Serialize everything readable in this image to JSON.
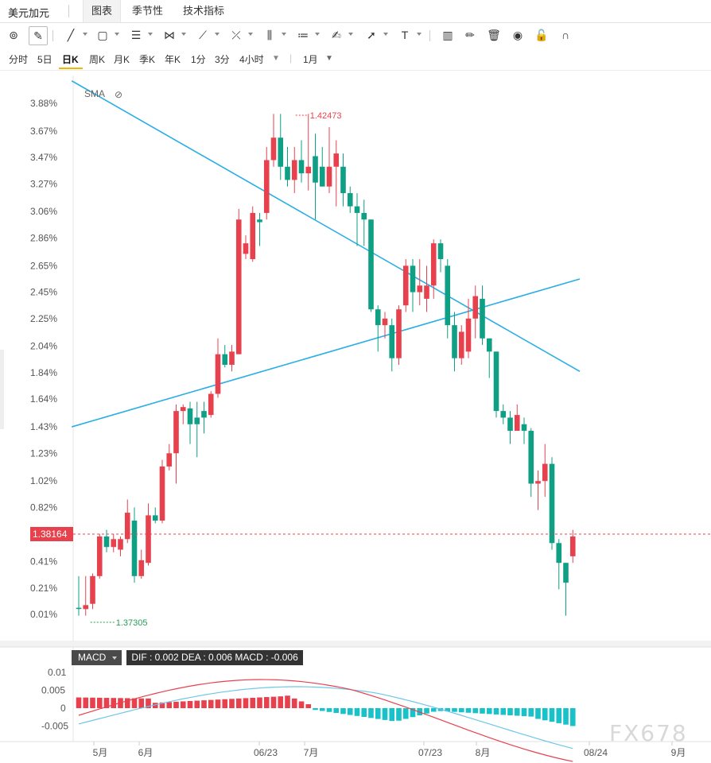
{
  "header": {
    "symbol": "美元加元",
    "tabs": [
      {
        "label": "图表",
        "active": true
      },
      {
        "label": "季节性",
        "active": false
      },
      {
        "label": "技术指标",
        "active": false
      }
    ]
  },
  "toolbar": {
    "tools": [
      {
        "name": "magnet-icon",
        "glyph": "⊚"
      },
      {
        "name": "pencil-lock-icon",
        "glyph": "✎"
      },
      {
        "name": "trend-line-icon",
        "glyph": "╱"
      },
      {
        "name": "rectangle-icon",
        "glyph": "▢"
      },
      {
        "name": "channel-icon",
        "glyph": "☰"
      },
      {
        "name": "pattern-icon",
        "glyph": "⋈"
      },
      {
        "name": "ray-icon",
        "glyph": "⟋"
      },
      {
        "name": "fork-icon",
        "glyph": "⤫"
      },
      {
        "name": "fib-icon",
        "glyph": "⫼"
      },
      {
        "name": "gann-icon",
        "glyph": "≔"
      },
      {
        "name": "brush-icon",
        "glyph": "✍"
      },
      {
        "name": "arrow-icon",
        "glyph": "➚"
      },
      {
        "name": "text-icon",
        "glyph": "T"
      },
      {
        "name": "measure-icon",
        "glyph": "▥"
      },
      {
        "name": "edit-icon",
        "glyph": "✏"
      },
      {
        "name": "trash-icon",
        "glyph": "🗑"
      },
      {
        "name": "eye-icon",
        "glyph": "◉"
      },
      {
        "name": "lock-icon",
        "glyph": "🔓"
      },
      {
        "name": "magnet-u-icon",
        "glyph": "∩"
      }
    ]
  },
  "periods": {
    "items": [
      "分时",
      "5日",
      "日K",
      "周K",
      "月K",
      "季K",
      "年K",
      "1分",
      "3分",
      "4小时"
    ],
    "active": "日K",
    "range_label": "1月"
  },
  "chart_data": {
    "type": "candlestick",
    "indicator_label": "SMA",
    "y_axis_ticks": [
      "3.88%",
      "3.67%",
      "3.47%",
      "3.27%",
      "3.06%",
      "2.86%",
      "2.65%",
      "2.45%",
      "2.25%",
      "2.04%",
      "1.84%",
      "1.64%",
      "1.43%",
      "1.23%",
      "1.02%",
      "0.82%",
      "0.41%",
      "0.21%",
      "0.01%"
    ],
    "y_axis_range_pct": [
      0.0,
      3.95
    ],
    "current_price_label": "1.38164",
    "high_label": "1.42473",
    "low_label": "1.37305",
    "x_axis_labels": [
      "5月",
      "6月",
      "06/23",
      "7月",
      "07/23",
      "8月",
      "08/24",
      "9月"
    ],
    "colors": {
      "up": "#e8414e",
      "down": "#0e9f85",
      "trendline": "#29aee6",
      "macd_pos": "#e8414e",
      "macd_neg": "#18c2c8"
    },
    "candles": [
      [
        0.06,
        0.06,
        0.3,
        0.0,
        0
      ],
      [
        0.08,
        0.05,
        0.3,
        0.0,
        1
      ],
      [
        0.09,
        0.3,
        0.32,
        0.05,
        1
      ],
      [
        0.3,
        0.6,
        0.62,
        0.28,
        1
      ],
      [
        0.6,
        0.52,
        0.65,
        0.48,
        0
      ],
      [
        0.52,
        0.58,
        0.62,
        0.48,
        1
      ],
      [
        0.5,
        0.58,
        0.6,
        0.45,
        1
      ],
      [
        0.58,
        0.78,
        0.88,
        0.55,
        1
      ],
      [
        0.72,
        0.3,
        0.82,
        0.25,
        0
      ],
      [
        0.3,
        0.42,
        0.5,
        0.28,
        1
      ],
      [
        0.4,
        0.76,
        0.85,
        0.38,
        1
      ],
      [
        0.76,
        0.72,
        0.82,
        0.7,
        0
      ],
      [
        0.72,
        1.13,
        1.18,
        0.7,
        1
      ],
      [
        1.13,
        1.23,
        1.3,
        1.1,
        1
      ],
      [
        1.23,
        1.55,
        1.6,
        1.0,
        1
      ],
      [
        1.55,
        1.58,
        1.6,
        1.45,
        1
      ],
      [
        1.57,
        1.45,
        1.62,
        1.3,
        0
      ],
      [
        1.45,
        1.5,
        1.62,
        1.2,
        0
      ],
      [
        1.5,
        1.55,
        1.62,
        1.38,
        0
      ],
      [
        1.52,
        1.68,
        1.7,
        1.5,
        1
      ],
      [
        1.68,
        1.98,
        2.1,
        1.65,
        1
      ],
      [
        1.98,
        1.9,
        2.05,
        1.88,
        0
      ],
      [
        1.9,
        2.0,
        2.05,
        1.85,
        1
      ],
      [
        1.98,
        3.0,
        3.08,
        1.98,
        1
      ],
      [
        2.82,
        2.74,
        2.88,
        2.7,
        1
      ],
      [
        2.7,
        3.05,
        3.1,
        2.68,
        1
      ],
      [
        3.0,
        2.98,
        3.05,
        2.8,
        0
      ],
      [
        3.05,
        3.45,
        3.55,
        3.0,
        1
      ],
      [
        3.45,
        3.62,
        3.8,
        3.4,
        1
      ],
      [
        3.62,
        3.4,
        3.8,
        3.3,
        0
      ],
      [
        3.4,
        3.3,
        3.55,
        3.25,
        0
      ],
      [
        3.3,
        3.45,
        3.55,
        3.2,
        1
      ],
      [
        3.45,
        3.35,
        3.6,
        3.28,
        0
      ],
      [
        3.35,
        3.4,
        3.8,
        3.22,
        1
      ],
      [
        3.48,
        3.28,
        3.65,
        3.0,
        0
      ],
      [
        3.4,
        3.25,
        3.55,
        3.25,
        0
      ],
      [
        3.25,
        3.4,
        3.7,
        3.2,
        1
      ],
      [
        3.4,
        3.5,
        3.6,
        3.1,
        1
      ],
      [
        3.4,
        3.2,
        3.5,
        3.1,
        0
      ],
      [
        3.2,
        3.1,
        3.25,
        3.05,
        0
      ],
      [
        3.1,
        3.05,
        3.2,
        2.8,
        0
      ],
      [
        3.05,
        3.0,
        3.15,
        2.8,
        0
      ],
      [
        3.0,
        2.32,
        3.0,
        2.3,
        0
      ],
      [
        2.32,
        2.2,
        2.35,
        2.0,
        0
      ],
      [
        2.2,
        2.25,
        2.3,
        2.1,
        1
      ],
      [
        2.2,
        1.95,
        2.25,
        1.85,
        0
      ],
      [
        1.95,
        2.32,
        2.35,
        1.9,
        1
      ],
      [
        2.35,
        2.65,
        2.7,
        2.3,
        1
      ],
      [
        2.65,
        2.45,
        2.7,
        2.3,
        0
      ],
      [
        2.45,
        2.5,
        2.7,
        2.35,
        1
      ],
      [
        2.4,
        2.5,
        2.65,
        2.3,
        1
      ],
      [
        2.5,
        2.82,
        2.85,
        2.4,
        1
      ],
      [
        2.82,
        2.7,
        2.85,
        2.6,
        0
      ],
      [
        2.65,
        2.2,
        2.7,
        2.1,
        0
      ],
      [
        2.2,
        1.95,
        2.3,
        1.85,
        0
      ],
      [
        1.95,
        2.15,
        2.2,
        1.9,
        1
      ],
      [
        2.0,
        2.25,
        2.4,
        1.95,
        1
      ],
      [
        2.25,
        2.42,
        2.5,
        2.1,
        1
      ],
      [
        2.4,
        2.1,
        2.5,
        2.05,
        0
      ],
      [
        2.1,
        2.0,
        2.1,
        1.8,
        0
      ],
      [
        2.0,
        1.55,
        2.0,
        1.5,
        0
      ],
      [
        1.55,
        1.5,
        1.6,
        1.45,
        0
      ],
      [
        1.5,
        1.4,
        1.55,
        1.3,
        0
      ],
      [
        1.4,
        1.52,
        1.6,
        1.4,
        1
      ],
      [
        1.45,
        1.4,
        1.5,
        1.3,
        0
      ],
      [
        1.4,
        1.0,
        1.42,
        0.9,
        0
      ],
      [
        1.0,
        1.02,
        1.1,
        0.8,
        1
      ],
      [
        1.02,
        1.15,
        1.3,
        0.9,
        1
      ],
      [
        1.15,
        0.55,
        1.2,
        0.5,
        0
      ],
      [
        0.55,
        0.4,
        0.58,
        0.2,
        0
      ],
      [
        0.4,
        0.25,
        0.4,
        0.0,
        0
      ],
      [
        0.45,
        0.6,
        0.65,
        0.4,
        1
      ]
    ],
    "trendlines": [
      {
        "from": [
          -1,
          1.43
        ],
        "to": [
          72,
          2.55
        ]
      },
      {
        "from": [
          -1,
          4.05
        ],
        "to": [
          72,
          1.85
        ]
      }
    ],
    "macd": {
      "y_ticks": [
        "0.01",
        "0.005",
        "0",
        "-0.005"
      ],
      "dif": 0.002,
      "dea": 0.006,
      "macd": -0.006
    }
  },
  "macd_panel": {
    "tag": "MACD",
    "values": "DIF : 0.002   DEA : 0.006   MACD : -0.006"
  },
  "watermark": "FX678"
}
